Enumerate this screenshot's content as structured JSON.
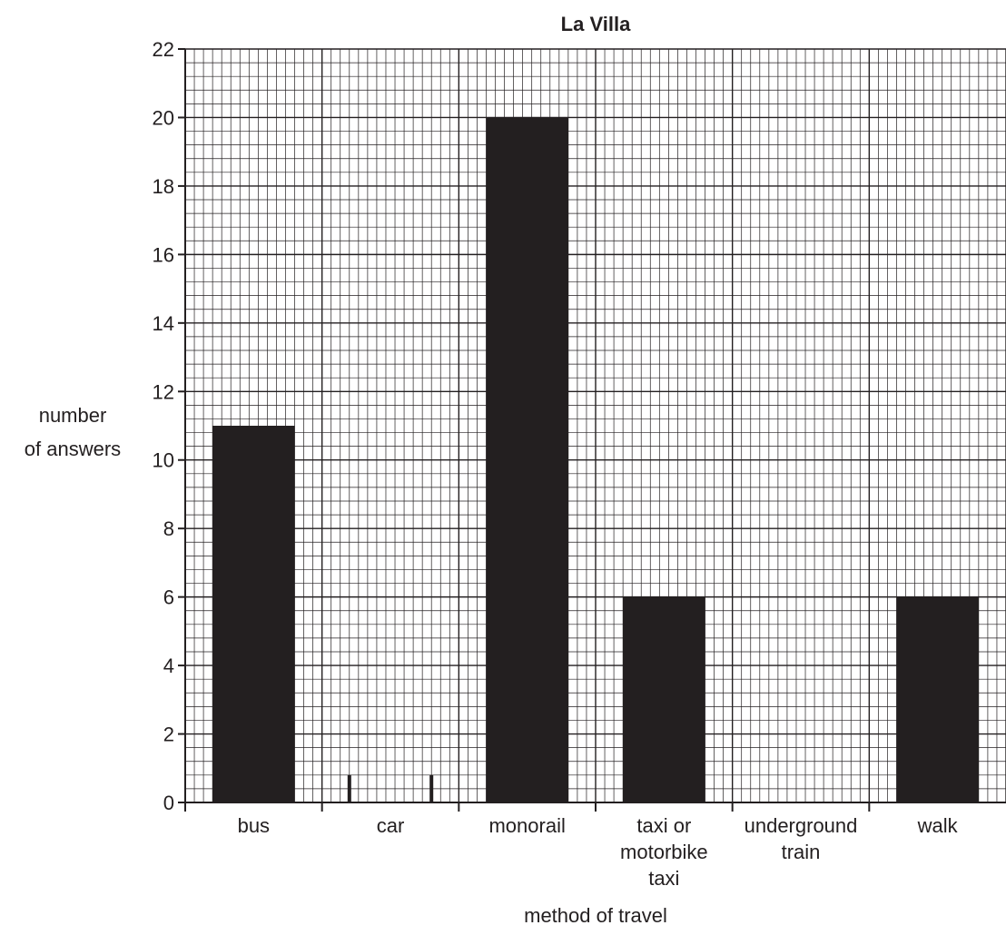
{
  "chart_data": {
    "type": "bar",
    "title": "La Villa",
    "xlabel": "method of travel",
    "ylabel_lines": [
      "number",
      "of answers"
    ],
    "categories": [
      [
        "bus"
      ],
      [
        "car"
      ],
      [
        "monorail"
      ],
      [
        "taxi or",
        "motorbike",
        "taxi"
      ],
      [
        "underground",
        "train"
      ],
      [
        "walk"
      ]
    ],
    "values": [
      11,
      null,
      20,
      6,
      null,
      6
    ],
    "car_markers": true,
    "ylim": [
      0,
      22
    ],
    "yticks": [
      0,
      2,
      4,
      6,
      8,
      10,
      12,
      14,
      16,
      18,
      20,
      22
    ],
    "grid": true,
    "colors": {
      "bar": "#231f20",
      "grid": "#231f20",
      "ink": "#231f20"
    }
  }
}
